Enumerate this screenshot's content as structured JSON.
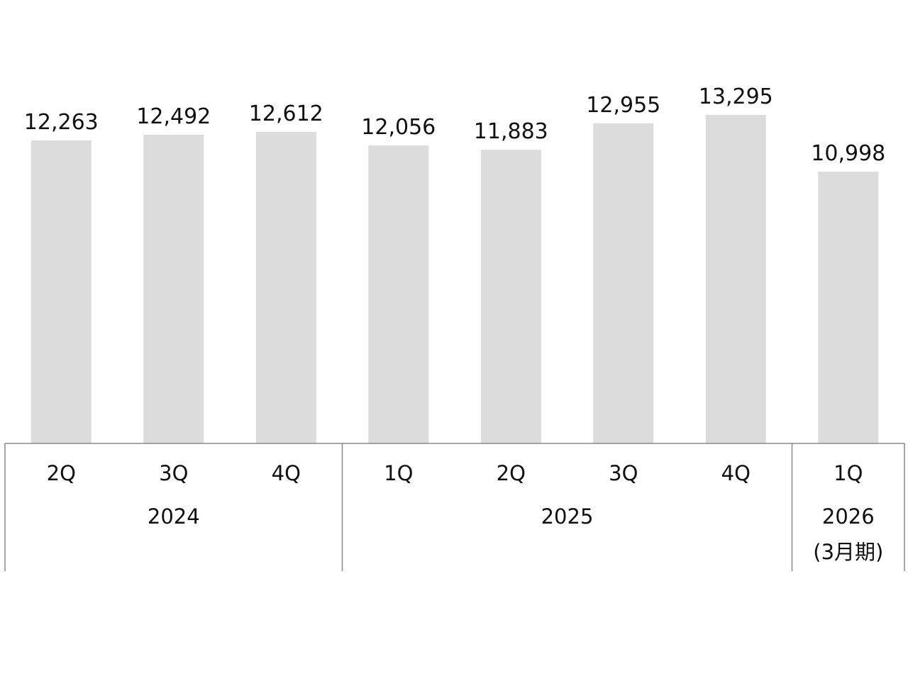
{
  "chart_data": {
    "type": "bar",
    "title": "",
    "xlabel": "",
    "ylabel": "",
    "ylim": [
      0,
      13295
    ],
    "grid": false,
    "legend": "none",
    "categories": [
      "2Q",
      "3Q",
      "4Q",
      "1Q",
      "2Q",
      "3Q",
      "4Q",
      "1Q"
    ],
    "values": [
      12263,
      12492,
      12612,
      12056,
      11883,
      12955,
      13295,
      10998
    ],
    "value_labels": [
      "12,263",
      "12,492",
      "12,612",
      "12,056",
      "11,883",
      "12,955",
      "13,295",
      "10,998"
    ],
    "groups": [
      {
        "label": "2024",
        "sublabel": "",
        "count": 3
      },
      {
        "label": "2025",
        "sublabel": "",
        "count": 4
      },
      {
        "label": "2026",
        "sublabel": "(3月期)",
        "count": 1
      }
    ],
    "colors": {
      "bar": "#dcdcdc",
      "axis": "#8a8a8a",
      "text": "#111111"
    }
  }
}
